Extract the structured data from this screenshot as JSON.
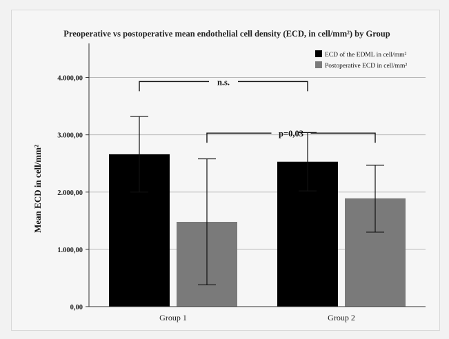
{
  "chart_data": {
    "type": "bar",
    "title": "Preoperative vs postoperative mean endothelial cell density (ECD, in cell/mm²) by Group",
    "xlabel": "",
    "ylabel": "Mean ECD in cell/mm²",
    "categories": [
      "Group 1",
      "Group 2"
    ],
    "ylim": [
      0,
      4500
    ],
    "yticks": [
      0,
      1000,
      2000,
      3000,
      4000
    ],
    "ytick_labels": [
      "0,00",
      "1.000,00",
      "2.000,00",
      "3.000,00",
      "4.000,00"
    ],
    "grid": true,
    "legend_position": "top-right",
    "series": [
      {
        "name": "ECD of the EDML in cell/mm²",
        "color": "#000000",
        "values": [
          2660,
          2530
        ],
        "error_low": [
          2000,
          2020
        ],
        "error_high": [
          3320,
          3040
        ]
      },
      {
        "name": "Postoperative ECD in cell/mm²",
        "color": "#7a7a7a",
        "values": [
          1480,
          1890
        ],
        "error_low": [
          380,
          1300
        ],
        "error_high": [
          2580,
          2470
        ]
      }
    ],
    "annotations": [
      {
        "text": "n.s.",
        "from": {
          "category": 0,
          "series": 0
        },
        "to": {
          "category": 1,
          "series": 0
        },
        "y": 3930
      },
      {
        "text": "p=0,03",
        "from": {
          "category": 0,
          "series": 1
        },
        "to": {
          "category": 1,
          "series": 1
        },
        "y": 3030
      }
    ]
  }
}
